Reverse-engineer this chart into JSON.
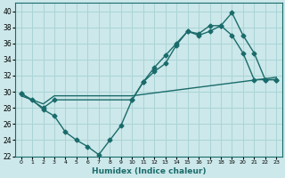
{
  "xlabel": "Humidex (Indice chaleur)",
  "bg_color": "#cce8ea",
  "grid_color": "#aad4d6",
  "line_color": "#1a6b6b",
  "marker": "D",
  "markersize": 2.5,
  "linewidth": 1.0,
  "xlim": [
    -0.5,
    23.5
  ],
  "ylim": [
    22,
    41
  ],
  "xticks": [
    0,
    1,
    2,
    3,
    4,
    5,
    6,
    7,
    8,
    9,
    10,
    11,
    12,
    13,
    14,
    15,
    16,
    17,
    18,
    19,
    20,
    21,
    22,
    23
  ],
  "yticks": [
    22,
    24,
    26,
    28,
    30,
    32,
    34,
    36,
    38,
    40
  ],
  "line1_x": [
    0,
    1,
    2,
    3,
    4,
    5,
    6,
    7,
    8,
    9,
    10,
    11,
    12,
    13,
    14,
    15,
    16,
    17,
    18,
    19,
    20,
    21,
    22,
    23
  ],
  "line1_y": [
    29.8,
    29.0,
    27.8,
    27.0,
    25.0,
    24.0,
    23.2,
    22.2,
    24.0,
    25.8,
    29.0,
    31.2,
    33.0,
    34.5,
    36.0,
    37.5,
    37.0,
    37.5,
    38.2,
    39.8,
    37.0,
    34.8,
    31.5,
    31.5
  ],
  "line2_x": [
    0,
    2,
    3,
    10,
    11,
    12,
    13,
    14,
    15,
    16,
    17,
    18,
    19,
    20,
    21,
    22,
    23
  ],
  "line2_y": [
    29.8,
    28.0,
    29.0,
    29.0,
    31.2,
    32.5,
    33.5,
    35.8,
    37.5,
    37.2,
    38.2,
    38.2,
    37.0,
    34.8,
    31.5,
    31.5,
    31.5
  ],
  "line3_x": [
    0,
    2,
    3,
    10,
    23
  ],
  "line3_y": [
    29.5,
    28.5,
    29.5,
    29.5,
    31.8
  ]
}
